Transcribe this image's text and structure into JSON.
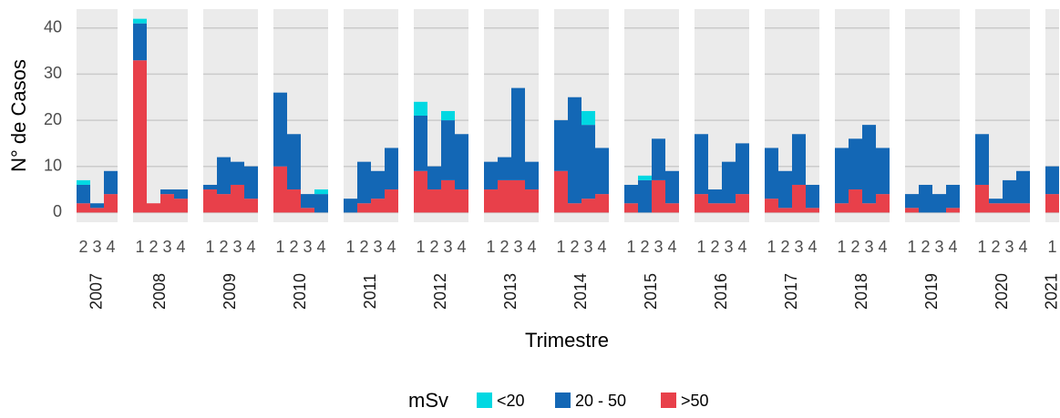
{
  "chart_data": {
    "type": "bar",
    "stacked": true,
    "y_label": "N° de Casos",
    "x_label": "Trimestre",
    "legend_title": "mSv",
    "ylim": [
      -2.1,
      44.1
    ],
    "yticks": [
      0,
      10,
      20,
      30,
      40
    ],
    "grid": true,
    "facets": [
      {
        "label": "2007",
        "categories": [
          "2",
          "3",
          "4"
        ]
      },
      {
        "label": "2008",
        "categories": [
          "1",
          "2",
          "3",
          "4"
        ]
      },
      {
        "label": "2009",
        "categories": [
          "1",
          "2",
          "3",
          "4"
        ]
      },
      {
        "label": "2010",
        "categories": [
          "1",
          "2",
          "3",
          "4"
        ]
      },
      {
        "label": "2011",
        "categories": [
          "1",
          "2",
          "3",
          "4"
        ]
      },
      {
        "label": "2012",
        "categories": [
          "1",
          "2",
          "3",
          "4"
        ]
      },
      {
        "label": "2013",
        "categories": [
          "1",
          "2",
          "3",
          "4"
        ]
      },
      {
        "label": "2014",
        "categories": [
          "1",
          "2",
          "3",
          "4"
        ]
      },
      {
        "label": "2015",
        "categories": [
          "1",
          "2",
          "3",
          "4"
        ]
      },
      {
        "label": "2016",
        "categories": [
          "1",
          "2",
          "3",
          "4"
        ]
      },
      {
        "label": "2017",
        "categories": [
          "1",
          "2",
          "3",
          "4"
        ]
      },
      {
        "label": "2018",
        "categories": [
          "1",
          "2",
          "3",
          "4"
        ]
      },
      {
        "label": "2019",
        "categories": [
          "1",
          "2",
          "3",
          "4"
        ]
      },
      {
        "label": "2020",
        "categories": [
          "1",
          "2",
          "3",
          "4"
        ]
      },
      {
        "label": "2021",
        "categories": [
          "1"
        ]
      }
    ],
    "series": [
      {
        "name": "<20",
        "color": "#00d8e2",
        "values": [
          1,
          0,
          0,
          1,
          0,
          0,
          0,
          0,
          0,
          0,
          0,
          0,
          0,
          0,
          1,
          0,
          0,
          0,
          0,
          3,
          0,
          2,
          0,
          0,
          0,
          0,
          0,
          0,
          0,
          3,
          0,
          0,
          1,
          0,
          0,
          0,
          0,
          0,
          0,
          0,
          0,
          0,
          0,
          0,
          0,
          0,
          0,
          0,
          0,
          0,
          0,
          0,
          0,
          0,
          0,
          0
        ]
      },
      {
        "name": "20 - 50",
        "color": "#1367b5",
        "values": [
          4,
          1,
          5,
          8,
          0,
          1,
          2,
          1,
          8,
          5,
          7,
          16,
          12,
          3,
          4,
          3,
          9,
          6,
          9,
          12,
          5,
          13,
          12,
          6,
          5,
          20,
          6,
          11,
          23,
          16,
          10,
          4,
          7,
          9,
          7,
          13,
          3,
          9,
          11,
          11,
          8,
          11,
          5,
          12,
          11,
          17,
          10,
          3,
          6,
          4,
          5,
          11,
          1,
          5,
          7,
          6
        ]
      },
      {
        "name": ">50",
        "color": "#e8404a",
        "values": [
          2,
          1,
          4,
          33,
          2,
          4,
          3,
          5,
          4,
          6,
          3,
          10,
          5,
          1,
          0,
          0,
          2,
          3,
          5,
          9,
          5,
          7,
          5,
          5,
          7,
          7,
          5,
          9,
          2,
          3,
          4,
          2,
          0,
          7,
          2,
          4,
          2,
          2,
          4,
          3,
          1,
          6,
          1,
          2,
          5,
          2,
          4,
          1,
          0,
          0,
          1,
          6,
          2,
          2,
          2,
          4
        ]
      }
    ]
  }
}
